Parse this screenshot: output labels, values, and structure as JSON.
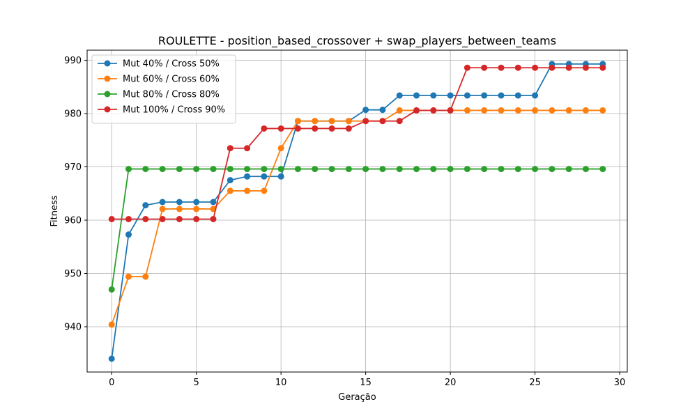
{
  "chart_data": {
    "type": "line",
    "title": "ROULETTE - position_based_crossover + swap_players_between_teams",
    "xlabel": "Geração",
    "ylabel": "Fitness",
    "xlim": [
      -1.45,
      30.45
    ],
    "ylim": [
      931.5,
      991.9
    ],
    "xticks": [
      0,
      5,
      10,
      15,
      20,
      25,
      30
    ],
    "yticks": [
      940,
      950,
      960,
      970,
      980,
      990
    ],
    "grid": true,
    "legend_position": "upper left",
    "x": [
      0,
      1,
      2,
      3,
      4,
      5,
      6,
      7,
      8,
      9,
      10,
      11,
      12,
      13,
      14,
      15,
      16,
      17,
      18,
      19,
      20,
      21,
      22,
      23,
      24,
      25,
      26,
      27,
      28,
      29
    ],
    "series": [
      {
        "name": "Mut 40% / Cross 50%",
        "color": "#1f77b4",
        "values": [
          934.0,
          957.3,
          962.8,
          963.4,
          963.4,
          963.4,
          963.4,
          967.5,
          968.2,
          968.2,
          968.2,
          978.6,
          978.6,
          978.6,
          978.6,
          980.7,
          980.7,
          983.4,
          983.4,
          983.4,
          983.4,
          983.4,
          983.4,
          983.4,
          983.4,
          983.4,
          989.3,
          989.3,
          989.3,
          989.3
        ]
      },
      {
        "name": "Mut 60% / Cross 60%",
        "color": "#ff7f0e",
        "values": [
          940.4,
          949.4,
          949.4,
          962.1,
          962.1,
          962.1,
          962.1,
          965.5,
          965.5,
          965.5,
          973.5,
          978.6,
          978.6,
          978.6,
          978.6,
          978.6,
          978.6,
          980.6,
          980.6,
          980.6,
          980.6,
          980.6,
          980.6,
          980.6,
          980.6,
          980.6,
          980.6,
          980.6,
          980.6,
          980.6
        ]
      },
      {
        "name": "Mut 80% / Cross 80%",
        "color": "#2ca02c",
        "values": [
          947.0,
          969.6,
          969.6,
          969.6,
          969.6,
          969.6,
          969.6,
          969.6,
          969.6,
          969.6,
          969.6,
          969.6,
          969.6,
          969.6,
          969.6,
          969.6,
          969.6,
          969.6,
          969.6,
          969.6,
          969.6,
          969.6,
          969.6,
          969.6,
          969.6,
          969.6,
          969.6,
          969.6,
          969.6,
          969.6
        ]
      },
      {
        "name": "Mut 100% / Cross 90%",
        "color": "#d62728",
        "values": [
          960.2,
          960.2,
          960.2,
          960.2,
          960.2,
          960.2,
          960.2,
          973.5,
          973.5,
          977.2,
          977.2,
          977.2,
          977.2,
          977.2,
          977.2,
          978.6,
          978.6,
          978.6,
          980.6,
          980.6,
          980.6,
          988.6,
          988.6,
          988.6,
          988.6,
          988.6,
          988.6,
          988.6,
          988.6,
          988.6
        ]
      }
    ]
  }
}
